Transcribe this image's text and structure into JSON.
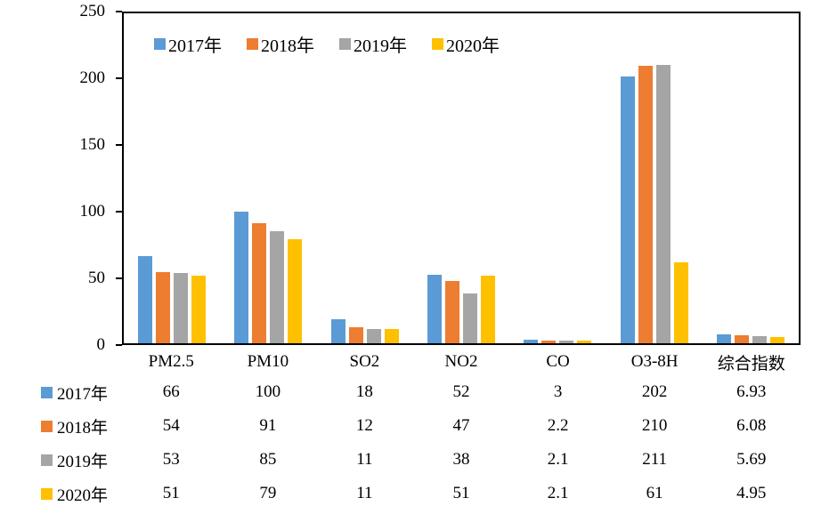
{
  "background_color": "#ffffff",
  "text_color": "#000000",
  "axis_color": "#000000",
  "chart_data": {
    "type": "bar",
    "title": "",
    "xlabel": "",
    "ylabel": "",
    "categories": [
      "PM2.5",
      "PM10",
      "SO2",
      "NO2",
      "CO",
      "O3-8H",
      "综合指数"
    ],
    "series": [
      {
        "name": "2017年",
        "color": "#5B9BD5",
        "values": [
          66,
          100,
          18,
          52,
          3,
          202,
          6.93
        ]
      },
      {
        "name": "2018年",
        "color": "#ED7D31",
        "values": [
          54,
          91,
          12,
          47,
          2.2,
          210,
          6.08
        ]
      },
      {
        "name": "2019年",
        "color": "#A5A5A5",
        "values": [
          53,
          85,
          11,
          38,
          2.1,
          211,
          5.69
        ]
      },
      {
        "name": "2020年",
        "color": "#FFC000",
        "values": [
          51,
          79,
          11,
          51,
          2.1,
          61,
          4.95
        ]
      }
    ],
    "ylim": [
      0,
      250
    ],
    "yticks": [
      0,
      50,
      100,
      150,
      200,
      250
    ],
    "grid": false,
    "legend_position": "top-inside",
    "data_table_attached": true
  }
}
